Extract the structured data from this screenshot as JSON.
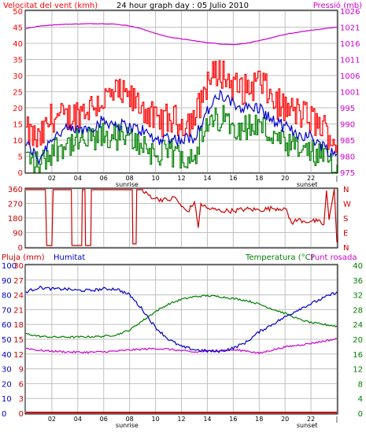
{
  "title": "24 hour graph day : 05 Julio 2010",
  "colors": {
    "wind_speed": "#ff0000",
    "wind_gust": "#ff0000",
    "wind_avg": "#0000cc",
    "wind_min": "#008000",
    "pressure": "#cc00cc",
    "wind_dir": "#cc0000",
    "rain": "#cc0000",
    "humidity": "#0000cc",
    "temperature": "#008000",
    "dewpoint": "#cc00cc",
    "grid": "#c0c0c0",
    "frame": "#000000"
  },
  "chart_data": [
    {
      "type": "line",
      "panel": "wind_pressure",
      "title": "24 hour graph day : 05 Julio 2010",
      "left_axis_label": "Velocitat del vent (kmh)",
      "right_axis_label": "Pressió (mb)",
      "x_ticks": [
        "02",
        "04",
        "06",
        "08",
        "10",
        "12",
        "14",
        "16",
        "18",
        "20",
        "22",
        "|"
      ],
      "x_annotations": [
        "sunrise",
        "sunset"
      ],
      "x_annotation_positions": [
        7.0,
        20.9
      ],
      "xlim": [
        0,
        24
      ],
      "ylim_left": [
        0,
        50
      ],
      "ylim_right": [
        975,
        1026
      ],
      "left_ticks": [
        "0",
        "5",
        "10",
        "15",
        "20",
        "25",
        "30",
        "35",
        "40",
        "45",
        "50"
      ],
      "right_ticks": [
        "975",
        "980",
        "985",
        "990",
        "995",
        "1001",
        "1006",
        "1011",
        "1016",
        "1021",
        "1026"
      ],
      "series": [
        {
          "role": "gust",
          "axis": "left",
          "x": [
            0,
            1,
            2,
            3,
            4,
            5,
            6,
            7,
            8,
            9,
            10,
            11,
            12,
            13,
            14,
            15,
            16,
            17,
            18,
            19,
            20,
            21,
            22,
            23,
            24
          ],
          "values": [
            11,
            8,
            16,
            15,
            17,
            19,
            21,
            23,
            21,
            19,
            14,
            15,
            14,
            15,
            27,
            30,
            25,
            24,
            27,
            21,
            18,
            17,
            15,
            12,
            7
          ]
        },
        {
          "role": "average",
          "axis": "left",
          "x": [
            0,
            1,
            2,
            3,
            4,
            5,
            6,
            7,
            8,
            9,
            10,
            11,
            12,
            13,
            14,
            15,
            16,
            17,
            18,
            19,
            20,
            21,
            22,
            23,
            24
          ],
          "values": [
            9,
            4,
            11,
            13,
            13,
            14,
            16,
            15,
            14,
            13,
            10,
            11,
            10,
            11,
            19,
            24,
            21,
            20,
            20,
            16,
            14,
            12,
            11,
            8,
            5
          ]
        },
        {
          "role": "lull",
          "axis": "left",
          "x": [
            0,
            1,
            2,
            3,
            4,
            5,
            6,
            7,
            8,
            9,
            10,
            11,
            12,
            13,
            14,
            15,
            16,
            17,
            18,
            19,
            20,
            21,
            22,
            23,
            24
          ],
          "values": [
            5,
            2,
            7,
            9,
            9,
            10,
            11,
            11,
            10,
            9,
            5,
            6,
            5,
            6,
            14,
            17,
            15,
            14,
            15,
            11,
            8,
            7,
            6,
            4,
            2
          ]
        },
        {
          "role": "pressure",
          "axis": "right",
          "x": [
            0,
            1,
            2,
            3,
            4,
            5,
            6,
            7,
            8,
            9,
            10,
            11,
            12,
            13,
            14,
            15,
            16,
            17,
            18,
            19,
            20,
            21,
            22,
            23,
            24
          ],
          "values": [
            1020.5,
            1021.2,
            1021.6,
            1021.8,
            1021.9,
            1022.0,
            1022.0,
            1021.8,
            1021.3,
            1020.3,
            1018.9,
            1017.8,
            1017.2,
            1016.6,
            1016.0,
            1015.6,
            1015.4,
            1015.8,
            1016.6,
            1017.6,
            1018.6,
            1019.3,
            1019.9,
            1020.4,
            1020.9
          ]
        }
      ]
    },
    {
      "type": "line",
      "panel": "wind_direction",
      "left_ticks": [
        "360",
        "270",
        "180",
        "90",
        "0"
      ],
      "right_ticks": [
        "N",
        "W",
        "S",
        "E",
        "N"
      ],
      "ylim": [
        0,
        360
      ],
      "xlim": [
        0,
        24
      ],
      "series": [
        {
          "role": "direction",
          "x": [
            0,
            1.5,
            1.6,
            2.0,
            2.1,
            3.5,
            3.55,
            4.3,
            4.35,
            4.55,
            4.6,
            5.0,
            5.05,
            8.2,
            8.25,
            8.5,
            8.55,
            9.0,
            9.05,
            10.0,
            11.0,
            11.5,
            12.0,
            12.5,
            13.0,
            13.3,
            13.5,
            14.0,
            15.0,
            16.0,
            17.0,
            18.0,
            19.0,
            20.0,
            20.5,
            21.0,
            21.5,
            22.0,
            22.5,
            23.0,
            23.2,
            23.4,
            23.8,
            24.0
          ],
          "values": [
            355,
            355,
            10,
            10,
            355,
            355,
            10,
            10,
            355,
            355,
            10,
            10,
            355,
            355,
            20,
            20,
            355,
            355,
            340,
            300,
            290,
            310,
            250,
            220,
            280,
            120,
            270,
            240,
            225,
            225,
            235,
            230,
            240,
            240,
            150,
            170,
            160,
            160,
            160,
            140,
            350,
            170,
            360,
            30
          ]
        }
      ]
    },
    {
      "type": "line",
      "panel": "rain_humidity_temperature",
      "left_axis_labels": [
        "Pluja (mm)",
        "Humitat"
      ],
      "right_axis_label": "Temperatura (°C)",
      "right_axis_label2": "Punt rosada",
      "left_ticks_rain": [
        "0",
        "3",
        "6",
        "9",
        "12",
        "15",
        "18",
        "21",
        "24",
        "27",
        "30"
      ],
      "left_ticks_humidity": [
        "0",
        "10",
        "20",
        "30",
        "40",
        "50",
        "60",
        "70",
        "80",
        "90",
        "100"
      ],
      "right_ticks": [
        "0",
        "4",
        "8",
        "12",
        "16",
        "20",
        "24",
        "28",
        "32",
        "36",
        "40"
      ],
      "x_ticks": [
        "02",
        "04",
        "06",
        "08",
        "10",
        "12",
        "14",
        "16",
        "18",
        "20",
        "22",
        "|"
      ],
      "x_annotations": [
        "sunrise",
        "sunset"
      ],
      "xlim": [
        0,
        24
      ],
      "ylim_rain": [
        0,
        30
      ],
      "ylim_humidity": [
        0,
        100
      ],
      "ylim_temperature": [
        0,
        40
      ],
      "series": [
        {
          "role": "rain",
          "axis": "rain",
          "x": [
            0,
            24
          ],
          "values": [
            0,
            0
          ]
        },
        {
          "role": "humidity",
          "axis": "humidity",
          "x": [
            0,
            1,
            2,
            3,
            4,
            5,
            6,
            7,
            8,
            9,
            10,
            11,
            12,
            13,
            14,
            15,
            16,
            17,
            18,
            19,
            20,
            21,
            22,
            23,
            24
          ],
          "values": [
            82,
            85,
            84,
            84,
            83,
            83,
            84,
            84,
            80,
            70,
            58,
            50,
            45,
            43,
            42,
            42,
            44,
            48,
            55,
            60,
            65,
            70,
            74,
            78,
            82
          ]
        },
        {
          "role": "temperature",
          "axis": "temperature",
          "x": [
            0,
            1,
            2,
            3,
            4,
            5,
            6,
            7,
            8,
            9,
            10,
            11,
            12,
            13,
            14,
            15,
            16,
            17,
            18,
            19,
            20,
            21,
            22,
            23,
            24
          ],
          "values": [
            21.5,
            20.8,
            20.6,
            20.6,
            20.6,
            20.7,
            20.8,
            21.2,
            22.5,
            25.0,
            27.5,
            29.5,
            30.8,
            31.5,
            31.8,
            31.5,
            31.0,
            30.5,
            29.5,
            28.2,
            27.0,
            25.5,
            24.5,
            24.0,
            23.5
          ]
        },
        {
          "role": "dewpoint",
          "axis": "temperature",
          "x": [
            0,
            1,
            2,
            3,
            4,
            5,
            6,
            7,
            8,
            9,
            10,
            11,
            12,
            13,
            14,
            15,
            16,
            17,
            18,
            19,
            20,
            21,
            22,
            23,
            24
          ],
          "values": [
            17.6,
            17.0,
            16.8,
            16.6,
            16.5,
            16.5,
            16.6,
            16.8,
            17.1,
            17.3,
            17.5,
            17.3,
            16.9,
            16.5,
            16.8,
            16.9,
            17.1,
            16.9,
            16.2,
            17.1,
            17.9,
            18.4,
            18.9,
            19.5,
            20.1
          ]
        }
      ]
    }
  ]
}
